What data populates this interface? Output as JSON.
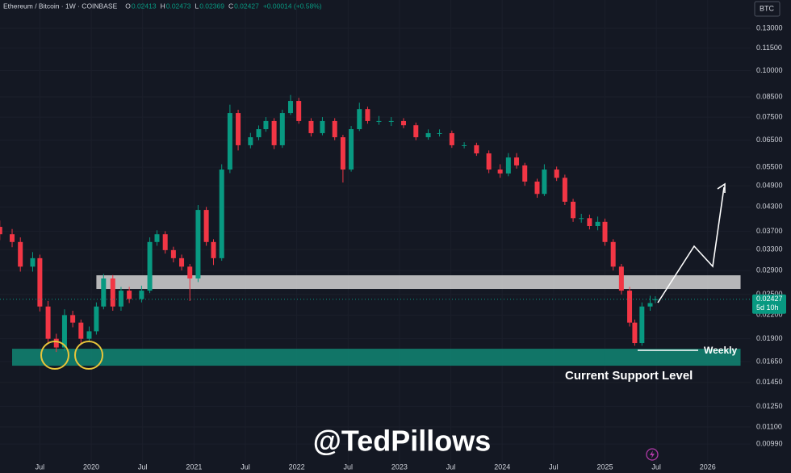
{
  "chart_data": {
    "type": "candlestick",
    "header": {
      "symbol": "Ethereum / Bitcoin · 1W · COINBASE",
      "ohlc": [
        {
          "key": "O",
          "value": "0.02413"
        },
        {
          "key": "H",
          "value": "0.02473"
        },
        {
          "key": "L",
          "value": "0.02369"
        },
        {
          "key": "C",
          "value": "0.02427"
        }
      ],
      "change": "+0.00014 (+0.58%)"
    },
    "currency": "BTC",
    "last_price": {
      "value": 0.02427,
      "label": "0.02427"
    },
    "countdown": "5d 10h",
    "annotations": {
      "weekly": "Weekly",
      "support": "Current Support Level",
      "watermark": "@TedPillows"
    },
    "log_scale": true,
    "grid": true,
    "up_color": "#089981",
    "down_color": "#f23645",
    "xlim": [
      2019.112,
      2026.418
    ],
    "xticks": [
      {
        "value": 2019.5,
        "label": "Jul"
      },
      2020,
      {
        "value": 2020.5,
        "label": "Jul"
      },
      2021,
      {
        "value": 2021.5,
        "label": "Jul"
      },
      2022,
      {
        "value": 2022.5,
        "label": "Jul"
      },
      2023,
      {
        "value": 2023.5,
        "label": "Jul"
      },
      2024,
      {
        "value": 2024.5,
        "label": "Jul"
      },
      2025,
      {
        "value": 2025.5,
        "label": "Jul"
      },
      2026
    ],
    "ylim": [
      0.00874,
      0.1549
    ],
    "yticks": [
      {
        "value": 0.13,
        "label": "0.13000"
      },
      {
        "value": 0.115,
        "label": "0.11500"
      },
      {
        "value": 0.1,
        "label": "0.10000"
      },
      {
        "value": 0.085,
        "label": "0.08500"
      },
      {
        "value": 0.075,
        "label": "0.07500"
      },
      {
        "value": 0.065,
        "label": "0.06500"
      },
      {
        "value": 0.055,
        "label": "0.05500"
      },
      {
        "value": 0.049,
        "label": "0.04900"
      },
      {
        "value": 0.043,
        "label": "0.04300"
      },
      {
        "value": 0.037,
        "label": "0.03700"
      },
      {
        "value": 0.033,
        "label": "0.03300"
      },
      {
        "value": 0.029,
        "label": "0.02900"
      },
      {
        "value": 0.025,
        "label": "0.02500"
      },
      {
        "value": 0.022,
        "label": "0.02200"
      },
      {
        "value": 0.019,
        "label": "0.01900"
      },
      {
        "value": 0.0165,
        "label": "0.01650"
      },
      {
        "value": 0.0145,
        "label": "0.01450"
      },
      {
        "value": 0.0125,
        "label": "0.01250"
      },
      {
        "value": 0.011,
        "label": "0.01100"
      },
      {
        "value": 0.0099,
        "label": "0.00990"
      }
    ],
    "zones": [
      {
        "color": "#d4d4d4",
        "x": [
          2020.05,
          2026.32
        ],
        "y": [
          0.02586,
          0.02815
        ]
      },
      {
        "color": "#11806f",
        "x": [
          2019.23,
          2026.32
        ],
        "y": [
          0.01608,
          0.01786
        ]
      }
    ],
    "x": [
      2019.11,
      2019.23,
      2019.31,
      2019.43,
      2019.5,
      2019.58,
      2019.66,
      2019.74,
      2019.82,
      2019.9,
      2019.98,
      2020.05,
      2020.12,
      2020.21,
      2020.29,
      2020.37,
      2020.49,
      2020.57,
      2020.64,
      2020.72,
      2020.8,
      2020.88,
      2020.96,
      2021.04,
      2021.12,
      2021.19,
      2021.27,
      2021.35,
      2021.43,
      2021.55,
      2021.63,
      2021.7,
      2021.78,
      2021.86,
      2021.94,
      2022.02,
      2022.14,
      2022.25,
      2022.37,
      2022.45,
      2022.53,
      2022.61,
      2022.69,
      2022.8,
      2022.92,
      2023.04,
      2023.16,
      2023.28,
      2023.39,
      2023.51,
      2023.63,
      2023.75,
      2023.87,
      2023.98,
      2024.06,
      2024.14,
      2024.22,
      2024.34,
      2024.41,
      2024.53,
      2024.61,
      2024.69,
      2024.77,
      2024.85,
      2024.93,
      2025.0,
      2025.08,
      2025.16,
      2025.24,
      2025.29,
      2025.36,
      2025.44,
      2025.49
    ],
    "open": [
      0.038,
      0.0363,
      0.0346,
      0.0297,
      0.0313,
      0.0232,
      0.019,
      0.018,
      0.022,
      0.021,
      0.019,
      0.0199,
      0.0232,
      0.0276,
      0.0232,
      0.0256,
      0.0243,
      0.0256,
      0.0346,
      0.0363,
      0.0329,
      0.0313,
      0.0297,
      0.0276,
      0.0422,
      0.0346,
      0.0313,
      0.0542,
      0.0769,
      0.063,
      0.0662,
      0.0696,
      0.0732,
      0.063,
      0.0769,
      0.0829,
      0.0732,
      0.0679,
      0.0732,
      0.0662,
      0.0542,
      0.0696,
      0.0788,
      0.0732,
      0.0732,
      0.0732,
      0.0713,
      0.0662,
      0.0679,
      0.0679,
      0.063,
      0.063,
      0.0599,
      0.0542,
      0.0529,
      0.0584,
      0.0556,
      0.0503,
      0.0466,
      0.0542,
      0.0515,
      0.0444,
      0.0401,
      0.0401,
      0.0382,
      0.0392,
      0.0346,
      0.0297,
      0.0256,
      0.021,
      0.0185,
      0.0232,
      0.02413
    ],
    "high": [
      0.0395,
      0.0375,
      0.0356,
      0.0325,
      0.032,
      0.024,
      0.0196,
      0.0228,
      0.0226,
      0.0214,
      0.0205,
      0.0238,
      0.0284,
      0.0282,
      0.0262,
      0.0262,
      0.0264,
      0.0356,
      0.0372,
      0.037,
      0.0336,
      0.032,
      0.0302,
      0.0435,
      0.043,
      0.0352,
      0.056,
      0.081,
      0.0785,
      0.068,
      0.0712,
      0.075,
      0.0745,
      0.0785,
      0.086,
      0.0845,
      0.0745,
      0.075,
      0.0745,
      0.0672,
      0.071,
      0.082,
      0.08,
      0.0755,
      0.075,
      0.0745,
      0.0725,
      0.0695,
      0.0695,
      0.069,
      0.0642,
      0.064,
      0.061,
      0.056,
      0.06,
      0.06,
      0.0565,
      0.0512,
      0.056,
      0.0552,
      0.0525,
      0.0452,
      0.0412,
      0.041,
      0.0405,
      0.04,
      0.0352,
      0.0302,
      0.0262,
      0.0214,
      0.0238,
      0.0248,
      0.02473
    ],
    "low": [
      0.035,
      0.0335,
      0.0288,
      0.0288,
      0.0225,
      0.0184,
      0.0175,
      0.0176,
      0.0204,
      0.0184,
      0.0186,
      0.0195,
      0.0228,
      0.0226,
      0.0226,
      0.0237,
      0.0238,
      0.0252,
      0.0338,
      0.0322,
      0.0305,
      0.029,
      0.024,
      0.027,
      0.0338,
      0.03,
      0.0308,
      0.053,
      0.061,
      0.0618,
      0.065,
      0.0685,
      0.0615,
      0.062,
      0.076,
      0.072,
      0.0665,
      0.067,
      0.065,
      0.05,
      0.0535,
      0.0688,
      0.072,
      0.0715,
      0.071,
      0.07,
      0.065,
      0.0652,
      0.0665,
      0.062,
      0.0618,
      0.059,
      0.053,
      0.0515,
      0.052,
      0.0545,
      0.049,
      0.0455,
      0.046,
      0.0505,
      0.0435,
      0.0392,
      0.039,
      0.0374,
      0.0372,
      0.0338,
      0.029,
      0.025,
      0.0205,
      0.0182,
      0.0182,
      0.0226,
      0.02369
    ],
    "close": [
      0.0363,
      0.0346,
      0.0297,
      0.0313,
      0.0232,
      0.019,
      0.018,
      0.022,
      0.021,
      0.019,
      0.0199,
      0.0232,
      0.0276,
      0.0232,
      0.0256,
      0.0243,
      0.0256,
      0.0346,
      0.0363,
      0.0329,
      0.0313,
      0.0297,
      0.0276,
      0.0422,
      0.0346,
      0.0313,
      0.0542,
      0.0769,
      0.063,
      0.0662,
      0.0696,
      0.0732,
      0.063,
      0.0769,
      0.0829,
      0.0732,
      0.0679,
      0.0732,
      0.0662,
      0.0542,
      0.0696,
      0.0788,
      0.0732,
      0.0732,
      0.0732,
      0.0713,
      0.0662,
      0.0679,
      0.0679,
      0.063,
      0.063,
      0.0599,
      0.0542,
      0.0529,
      0.0584,
      0.0556,
      0.0503,
      0.0466,
      0.0542,
      0.0515,
      0.0444,
      0.0401,
      0.0401,
      0.0382,
      0.0392,
      0.0346,
      0.0297,
      0.0256,
      0.021,
      0.0185,
      0.0232,
      0.0237,
      0.02427
    ]
  }
}
